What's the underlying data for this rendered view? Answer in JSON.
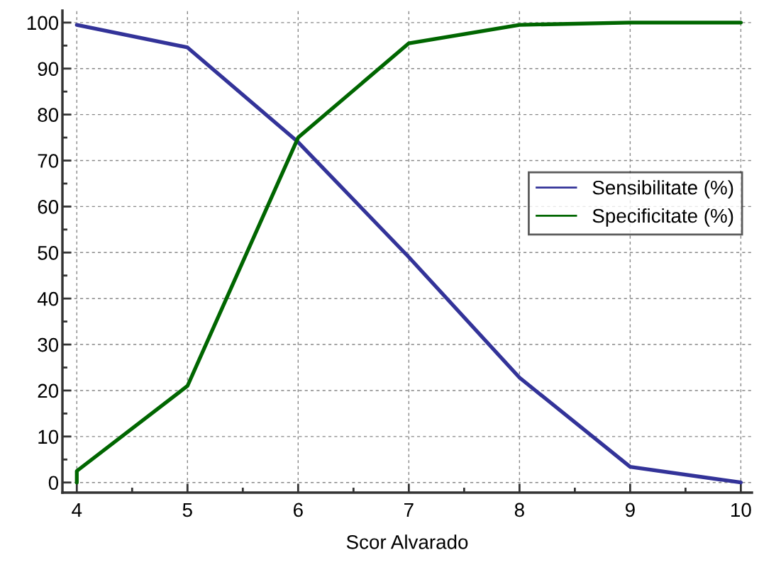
{
  "chart_data": {
    "type": "line",
    "xlabel": "Scor Alvarado",
    "series": [
      {
        "name": "Sensibilitate (%)",
        "color": "#333399",
        "x": [
          4,
          5,
          6,
          7,
          8,
          9,
          10
        ],
        "values": [
          99.5,
          94.6,
          74,
          49,
          22.8,
          3.4,
          0
        ]
      },
      {
        "name": "Specificitate (%)",
        "color": "#006600",
        "x": [
          4,
          4,
          5,
          6,
          7,
          8,
          9,
          10
        ],
        "values": [
          0,
          2.5,
          21,
          75,
          95.5,
          99.5,
          100,
          100
        ]
      }
    ],
    "xlim": [
      3.87,
      10.1
    ],
    "ylim": [
      -2.2,
      102.6
    ],
    "xticks": [
      4,
      5,
      6,
      7,
      8,
      9,
      10
    ],
    "yticks": [
      0,
      10,
      20,
      30,
      40,
      50,
      60,
      70,
      80,
      90,
      100
    ],
    "grid": true,
    "legend": "center right",
    "marker": "none",
    "line_style": "solid"
  }
}
